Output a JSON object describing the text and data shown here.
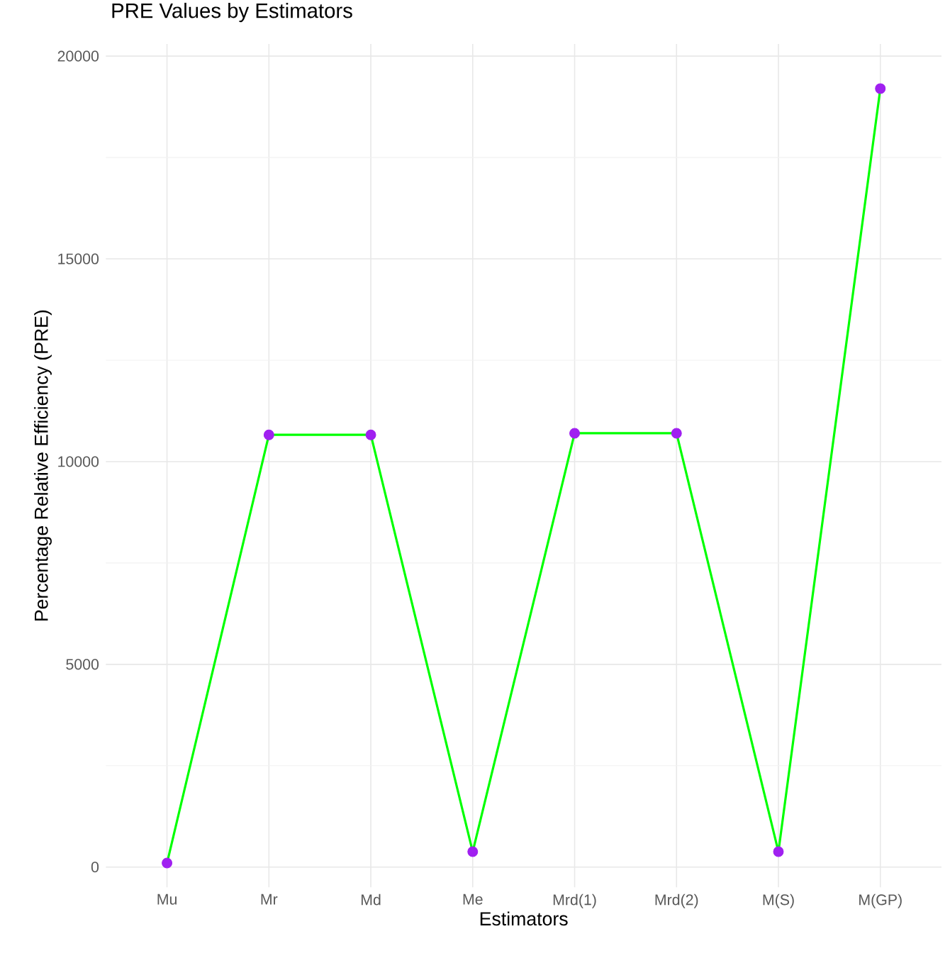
{
  "chart_data": {
    "type": "line",
    "title": "PRE Values by Estimators",
    "xlabel": "Estimators",
    "ylabel": "Percentage Relative Efficiency (PRE)",
    "categories": [
      "Mu",
      "Mr",
      "Md",
      "Me",
      "Mrd(1)",
      "Mrd(2)",
      "M(S)",
      "M(GP)"
    ],
    "series": [
      {
        "color": "#00ff00",
        "colors": [
          "#a020f0",
          "#a020f0",
          "#a020f0",
          "#a020f0",
          "#a020f0",
          "#a020f0",
          "#a020f0",
          "#a020f0"
        ],
        "values": [
          100,
          10660,
          10660,
          380,
          10700,
          10700,
          380,
          19200
        ]
      }
    ],
    "ylim": [
      -500,
      20300
    ],
    "yticks": [
      0,
      5000,
      10000,
      15000,
      20000
    ],
    "grid": true,
    "marker": "circle",
    "line_style": "solid"
  }
}
